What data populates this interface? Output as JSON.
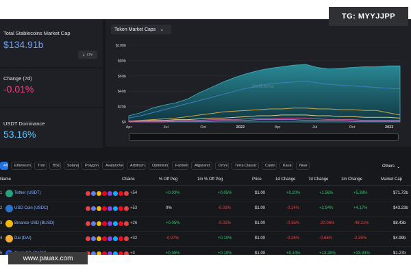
{
  "badge": "TG: MYYJJPP",
  "watermark": "www.pauax.com",
  "stats": {
    "market_cap": {
      "label": "Total Stablecoins Market Cap",
      "value": "$134.91b",
      "csv": ".csv",
      "color": "#6ba1ff"
    },
    "change": {
      "label": "Change (7d)",
      "value": "-0.01%",
      "color": "#ff3f86"
    },
    "dominance": {
      "label": "USDT Dominance",
      "value": "53.16%",
      "color": "#5fc6ff"
    }
  },
  "chart": {
    "selector": "Token Market Caps",
    "watermark_text": "DefiLlama"
  },
  "chart_data": {
    "type": "area",
    "title": "Token Market Caps",
    "yticks": [
      "$100b",
      "$80b",
      "$60b",
      "$40b",
      "$20b",
      "$0"
    ],
    "ylim": [
      0,
      100
    ],
    "xticks": [
      "Apr",
      "Jul",
      "Oct",
      "2022",
      "Apr",
      "Jul",
      "Oct",
      "2023"
    ],
    "x": [
      0,
      1,
      2,
      3,
      4,
      5,
      6,
      7,
      8,
      9,
      10,
      11,
      12,
      13,
      14,
      15,
      16,
      17,
      18,
      19,
      20,
      21,
      22,
      23
    ],
    "series": [
      {
        "values": [
          8,
          12,
          18,
          22,
          25,
          30,
          38,
          45,
          52,
          58,
          63,
          67,
          70,
          72,
          74,
          75,
          71,
          69,
          70,
          71,
          72,
          72,
          73,
          73
        ],
        "color": "#1e6f7d"
      },
      {
        "values": [
          5,
          8,
          12,
          16,
          20,
          24,
          28,
          32,
          36,
          40,
          44,
          47,
          50,
          51,
          52,
          53,
          51,
          49,
          48,
          47,
          46,
          45,
          44,
          43
        ],
        "color": "#3f7fbf"
      },
      {
        "values": [
          1,
          2,
          3,
          4,
          5,
          7,
          9,
          11,
          13,
          14,
          15,
          16,
          17,
          17,
          18,
          18,
          17,
          17,
          16,
          16,
          15,
          15,
          12,
          9
        ],
        "color": "#c9a64a"
      },
      {
        "values": [
          1,
          1,
          2,
          2,
          3,
          3,
          4,
          5,
          5,
          6,
          7,
          8,
          8,
          9,
          9,
          9,
          8,
          8,
          7,
          7,
          6,
          6,
          6,
          5
        ],
        "color": "#d9c98a"
      },
      {
        "values": [
          1,
          1,
          1,
          1,
          2,
          2,
          2,
          3,
          3,
          3,
          4,
          4,
          4,
          5,
          5,
          5,
          4,
          3,
          3,
          3,
          2,
          2,
          2,
          2
        ],
        "color": "#c85a8a"
      },
      {
        "values": [
          0,
          0,
          0,
          0,
          1,
          1,
          1,
          1,
          2,
          2,
          2,
          3,
          3,
          3,
          3,
          2,
          2,
          2,
          2,
          1,
          1,
          1,
          1,
          1
        ],
        "color": "#b36bd6"
      }
    ]
  },
  "filters": {
    "items": [
      "All",
      "Ethereum",
      "Tron",
      "BSC",
      "Solana",
      "Polygon",
      "Avalanche",
      "Arbitrum",
      "Optimism",
      "Fantom",
      "Algorand",
      "Omni",
      "Terra Classic",
      "Canto",
      "Kava",
      "Near"
    ],
    "others": "Others"
  },
  "table": {
    "headers": {
      "name": "Name",
      "chains": "Chains",
      "off_peg": "% Off Peg",
      "off_peg_1m": "1m % Off Peg",
      "price": "Price",
      "change_1d": "1d Change",
      "change_7d": "7d Change",
      "change_1m": "1m Change",
      "market_cap": "Market Cap"
    },
    "rows": [
      {
        "rank": "1",
        "name": "Tether (USDT)",
        "coin_color": "#26a17b",
        "chains_more": "+54",
        "off_peg": "+0.03%",
        "off_peg_1m": "+0.05%",
        "price": "$1.00",
        "change_1d": "+0.20%",
        "change_7d": "+1.56%",
        "change_1m": "+5.38%",
        "market_cap": "$71.72b",
        "tones": [
          "green",
          "green",
          "green",
          "green",
          "green"
        ]
      },
      {
        "rank": "2",
        "name": "USD Coin (USDC)",
        "coin_color": "#2775ca",
        "chains_more": "+53",
        "off_peg": "0%",
        "off_peg_1m": "-0.03%",
        "price": "$1.00",
        "change_1d": "-0.14%",
        "change_7d": "+2.94%",
        "change_1m": "+4.17%",
        "market_cap": "$43.23b",
        "tones": [
          "white",
          "red",
          "red",
          "green",
          "green"
        ]
      },
      {
        "rank": "3",
        "name": "Binance USD (BUSD)",
        "coin_color": "#f0b90b",
        "chains_more": "+26",
        "off_peg": "+0.05%",
        "off_peg_1m": "-0.02%",
        "price": "$1.00",
        "change_1d": "-0.35%",
        "change_7d": "-20.06%",
        "change_1m": "-48.21%",
        "market_cap": "$8.43b",
        "tones": [
          "green",
          "red",
          "red",
          "red",
          "red"
        ]
      },
      {
        "rank": "4",
        "name": "Dai (DAI)",
        "coin_color": "#f5ac37",
        "chains_more": "+32",
        "off_peg": "-0.07%",
        "off_peg_1m": "+0.10%",
        "price": "$1.00",
        "change_1d": "-0.26%",
        "change_7d": "-0.66%",
        "change_1m": "-2.35%",
        "market_cap": "$4.99b",
        "tones": [
          "red",
          "green",
          "red",
          "red",
          "red"
        ]
      },
      {
        "rank": "5",
        "name": "TrueUSD (TUSD)",
        "coin_color": "#1a5aff",
        "chains_more": "+3",
        "off_peg": "+0.05%",
        "off_peg_1m": "+0.10%",
        "price": "$1.00",
        "change_1d": "+0.14%",
        "change_7d": "+13.28%",
        "change_1m": "+33.93%",
        "market_cap": "$1.27b",
        "tones": [
          "green",
          "green",
          "green",
          "green",
          "green"
        ]
      }
    ],
    "chain_colors": [
      "#e84142",
      "#627eea",
      "#f0b90b",
      "#ef0027",
      "#8247e5",
      "#12aaff",
      "#ff0420",
      "#e84142"
    ]
  }
}
